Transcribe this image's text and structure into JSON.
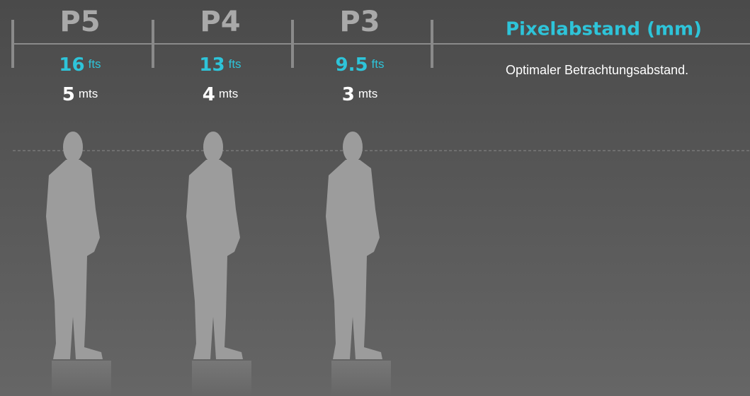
{
  "header": {
    "title": "Pixelabstand (mm)",
    "subtitle": "Optimaler Betrachtungsabstand."
  },
  "columns": [
    {
      "label": "P5",
      "feet": 16,
      "feet_unit": "fts",
      "meters": 5,
      "meters_unit": "mts"
    },
    {
      "label": "P4",
      "feet": 13,
      "feet_unit": "fts",
      "meters": 4,
      "meters_unit": "mts"
    },
    {
      "label": "P3",
      "feet": 9.5,
      "feet_unit": "fts",
      "meters": 3,
      "meters_unit": "mts"
    }
  ]
}
